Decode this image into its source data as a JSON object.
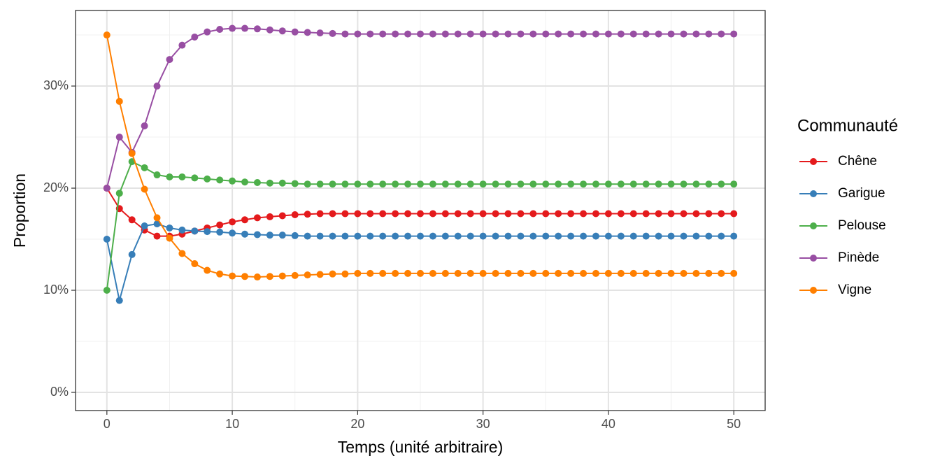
{
  "chart_data": {
    "type": "line",
    "x_label": "Temps (unité arbitraire)",
    "y_label": "Proportion",
    "legend_title": "Communauté",
    "legend": "right",
    "grid": true,
    "x": [
      0,
      1,
      2,
      3,
      4,
      5,
      6,
      7,
      8,
      9,
      10,
      11,
      12,
      13,
      14,
      15,
      16,
      17,
      18,
      19,
      20,
      21,
      22,
      23,
      24,
      25,
      26,
      27,
      28,
      29,
      30,
      31,
      32,
      33,
      34,
      35,
      36,
      37,
      38,
      39,
      40,
      41,
      42,
      43,
      44,
      45,
      46,
      47,
      48,
      49,
      50
    ],
    "xlim": [
      -2.5,
      52.5
    ],
    "xticks": [
      0,
      10,
      20,
      30,
      40,
      50
    ],
    "xminorticks": [
      5,
      15,
      25,
      35,
      45
    ],
    "ylim": [
      -1.78,
      37.4
    ],
    "yticks": [
      {
        "value": 0,
        "label": "0%"
      },
      {
        "value": 10,
        "label": "10%"
      },
      {
        "value": 20,
        "label": "20%"
      },
      {
        "value": 30,
        "label": "30%"
      }
    ],
    "yminorticks": [
      5,
      15,
      25,
      35
    ],
    "series": [
      {
        "name": "Chêne",
        "color": "#e41a1c",
        "values": [
          20,
          18,
          16.9,
          15.9,
          15.3,
          15.3,
          15.5,
          15.8,
          16.1,
          16.4,
          16.7,
          16.9,
          17.1,
          17.2,
          17.3,
          17.4,
          17.45,
          17.5,
          17.5,
          17.5,
          17.5,
          17.5,
          17.5,
          17.5,
          17.5,
          17.5,
          17.5,
          17.5,
          17.5,
          17.5,
          17.5,
          17.5,
          17.5,
          17.5,
          17.5,
          17.5,
          17.5,
          17.5,
          17.5,
          17.5,
          17.5,
          17.5,
          17.5,
          17.5,
          17.5,
          17.5,
          17.5,
          17.5,
          17.5,
          17.5,
          17.5
        ]
      },
      {
        "name": "Garigue",
        "color": "#377eb8",
        "values": [
          15,
          9,
          13.5,
          16.3,
          16.5,
          16.1,
          15.9,
          15.8,
          15.75,
          15.7,
          15.6,
          15.5,
          15.45,
          15.4,
          15.4,
          15.35,
          15.3,
          15.3,
          15.3,
          15.3,
          15.3,
          15.3,
          15.3,
          15.3,
          15.3,
          15.3,
          15.3,
          15.3,
          15.3,
          15.3,
          15.3,
          15.3,
          15.3,
          15.3,
          15.3,
          15.3,
          15.3,
          15.3,
          15.3,
          15.3,
          15.3,
          15.3,
          15.3,
          15.3,
          15.3,
          15.3,
          15.3,
          15.3,
          15.3,
          15.3,
          15.3
        ]
      },
      {
        "name": "Pelouse",
        "color": "#4daf4a",
        "values": [
          10,
          19.5,
          22.6,
          22,
          21.3,
          21.1,
          21.1,
          21,
          20.9,
          20.8,
          20.7,
          20.6,
          20.55,
          20.5,
          20.5,
          20.45,
          20.4,
          20.4,
          20.4,
          20.4,
          20.4,
          20.4,
          20.4,
          20.4,
          20.4,
          20.4,
          20.4,
          20.4,
          20.4,
          20.4,
          20.4,
          20.4,
          20.4,
          20.4,
          20.4,
          20.4,
          20.4,
          20.4,
          20.4,
          20.4,
          20.4,
          20.4,
          20.4,
          20.4,
          20.4,
          20.4,
          20.4,
          20.4,
          20.4,
          20.4,
          20.4
        ]
      },
      {
        "name": "Pinède",
        "color": "#984ea3",
        "values": [
          20,
          25,
          23.5,
          26.1,
          30,
          32.6,
          34,
          34.8,
          35.3,
          35.55,
          35.65,
          35.65,
          35.6,
          35.5,
          35.4,
          35.3,
          35.25,
          35.2,
          35.15,
          35.1,
          35.1,
          35.1,
          35.1,
          35.1,
          35.1,
          35.1,
          35.1,
          35.1,
          35.1,
          35.1,
          35.1,
          35.1,
          35.1,
          35.1,
          35.1,
          35.1,
          35.1,
          35.1,
          35.1,
          35.1,
          35.1,
          35.1,
          35.1,
          35.1,
          35.1,
          35.1,
          35.1,
          35.1,
          35.1,
          35.1,
          35.1
        ]
      },
      {
        "name": "Vigne",
        "color": "#ff7f00",
        "values": [
          35,
          28.5,
          23.4,
          19.9,
          17.1,
          15.1,
          13.6,
          12.6,
          11.95,
          11.6,
          11.4,
          11.35,
          11.3,
          11.35,
          11.4,
          11.45,
          11.5,
          11.55,
          11.6,
          11.6,
          11.65,
          11.65,
          11.65,
          11.65,
          11.65,
          11.65,
          11.65,
          11.65,
          11.65,
          11.65,
          11.65,
          11.65,
          11.65,
          11.65,
          11.65,
          11.65,
          11.65,
          11.65,
          11.65,
          11.65,
          11.65,
          11.65,
          11.65,
          11.65,
          11.65,
          11.65,
          11.65,
          11.65,
          11.65,
          11.65,
          11.65
        ]
      }
    ]
  }
}
